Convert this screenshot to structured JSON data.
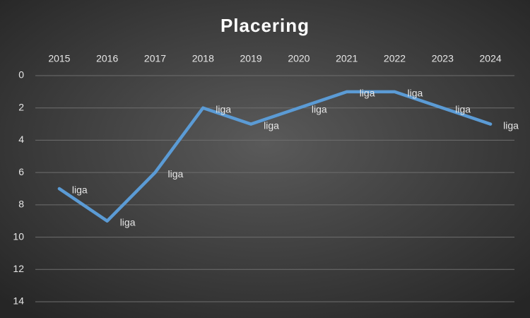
{
  "chart_data": {
    "type": "line",
    "title": "Placering",
    "categories": [
      "2015",
      "2016",
      "2017",
      "2018",
      "2019",
      "2020",
      "2021",
      "2022",
      "2023",
      "2024"
    ],
    "series": [
      {
        "name": "liga",
        "color": "#5b9bd5",
        "values": [
          7,
          9,
          6,
          2,
          3,
          2,
          1,
          1,
          2,
          3
        ]
      }
    ],
    "ylim": [
      0,
      14
    ],
    "yticks": [
      0,
      2,
      4,
      6,
      8,
      10,
      12,
      14
    ],
    "y_reversed": true,
    "grid": true,
    "data_labels": "series_name"
  }
}
